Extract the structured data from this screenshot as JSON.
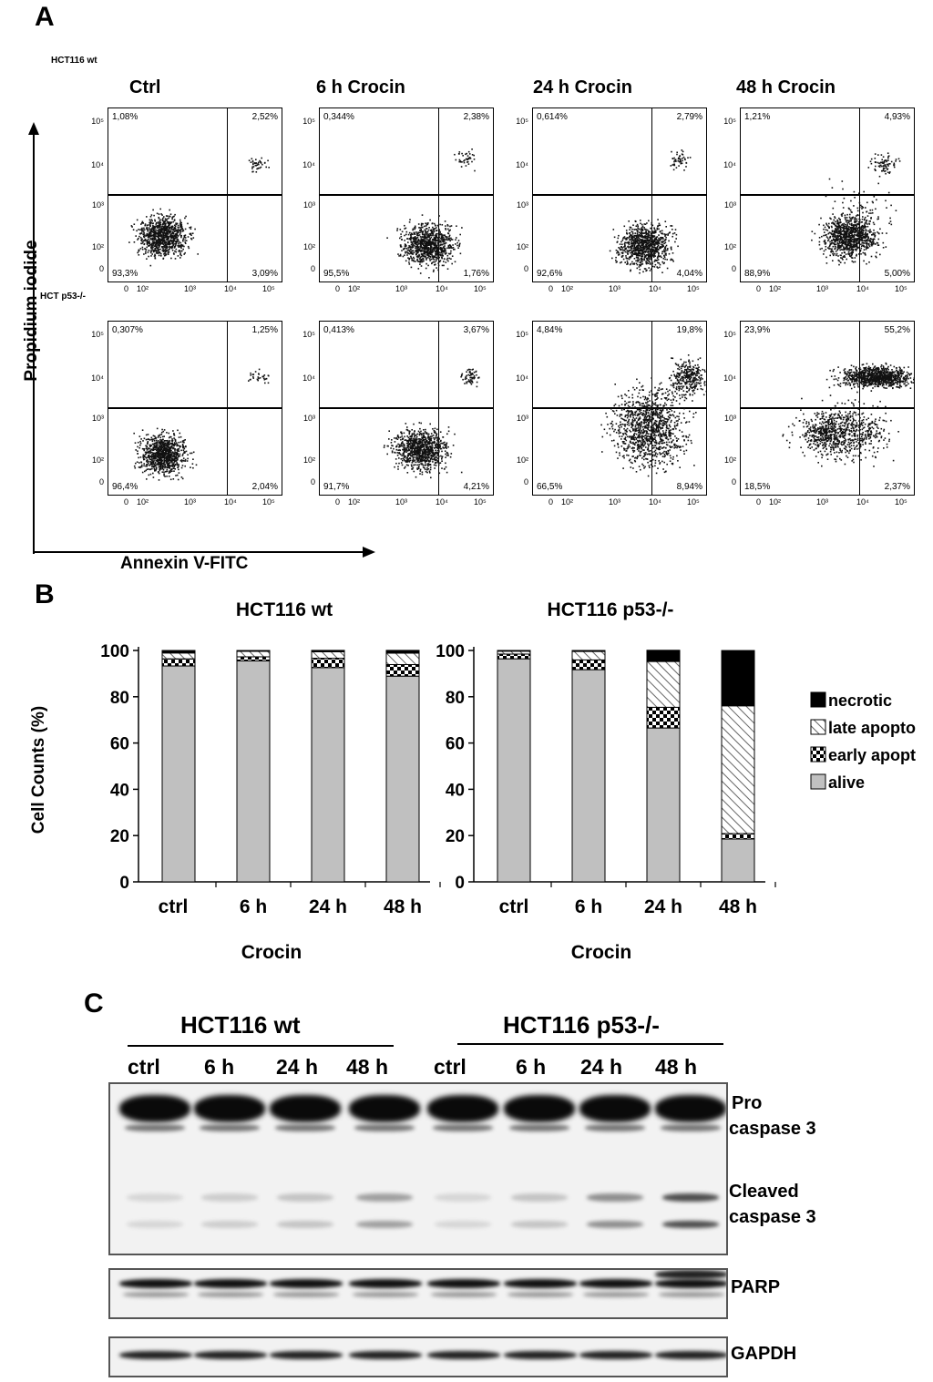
{
  "panels": {
    "a": "A",
    "b": "B",
    "c": "C"
  },
  "flow": {
    "row_labels": [
      "HCT116 wt",
      "HCT p53-/-"
    ],
    "column_titles": [
      "Ctrl",
      "6 h Crocin",
      "24 h Crocin",
      "48 h Crocin"
    ],
    "y_axis_label": "Propidium iodide",
    "x_axis_label": "Annexin V-FITC",
    "y_ticks": [
      "10⁵",
      "10⁴",
      "10³",
      "10²",
      "0"
    ],
    "x_ticks": [
      "0",
      "10²",
      "10³",
      "10⁴",
      "10⁵"
    ],
    "plots": [
      [
        {
          "ul": "1,08%",
          "ur": "2,52%",
          "ll": "93,3%",
          "lr": "3,09%"
        },
        {
          "ul": "0,344%",
          "ur": "2,38%",
          "ll": "95,5%",
          "lr": "1,76%"
        },
        {
          "ul": "0,614%",
          "ur": "2,79%",
          "ll": "92,6%",
          "lr": "4,04%"
        },
        {
          "ul": "1,21%",
          "ur": "4,93%",
          "ll": "88,9%",
          "lr": "5,00%"
        }
      ],
      [
        {
          "ul": "0,307%",
          "ur": "1,25%",
          "ll": "96,4%",
          "lr": "2,04%"
        },
        {
          "ul": "0,413%",
          "ur": "3,67%",
          "ll": "91,7%",
          "lr": "4,21%"
        },
        {
          "ul": "4,84%",
          "ur": "19,8%",
          "ll": "66,5%",
          "lr": "8,94%"
        },
        {
          "ul": "23,9%",
          "ur": "55,2%",
          "ll": "18,5%",
          "lr": "2,37%"
        }
      ]
    ]
  },
  "chart_data": {
    "type": "bar",
    "stacked": true,
    "ylabel": "Cell Counts (%)",
    "xlabel": "Crocin",
    "ylim": [
      0,
      100
    ],
    "y_ticks": [
      0,
      20,
      40,
      60,
      80,
      100
    ],
    "categories": [
      "ctrl",
      "6 h",
      "24 h",
      "48 h"
    ],
    "groups": [
      {
        "title": "HCT116 wt",
        "series": [
          {
            "name": "alive",
            "values": [
              93.3,
              95.5,
              92.6,
              88.9
            ]
          },
          {
            "name": "early apoptotic",
            "values": [
              3.09,
              1.76,
              4.04,
              5.0
            ]
          },
          {
            "name": "late apoptotic",
            "values": [
              2.52,
              2.38,
              2.79,
              4.93
            ]
          },
          {
            "name": "necrotic",
            "values": [
              1.08,
              0.34,
              0.61,
              1.21
            ]
          }
        ]
      },
      {
        "title": "HCT116 p53-/-",
        "series": [
          {
            "name": "alive",
            "values": [
              96.4,
              91.7,
              66.5,
              18.5
            ]
          },
          {
            "name": "early apoptotic",
            "values": [
              2.04,
              4.21,
              8.94,
              2.37
            ]
          },
          {
            "name": "late apoptotic",
            "values": [
              1.25,
              3.67,
              19.8,
              55.2
            ]
          },
          {
            "name": "necrotic",
            "values": [
              0.31,
              0.41,
              4.84,
              23.9
            ]
          }
        ]
      }
    ],
    "legend": [
      {
        "label": "necrotic"
      },
      {
        "label": "late apopto"
      },
      {
        "label": "early apopt"
      },
      {
        "label": "alive"
      }
    ]
  },
  "blot": {
    "groups": [
      "HCT116 wt",
      "HCT116 p53-/-"
    ],
    "lanes": [
      "ctrl",
      "6 h",
      "24 h",
      "48 h",
      "ctrl",
      "6 h",
      "24 h",
      "48 h"
    ],
    "labels": {
      "pro1": "Pro",
      "pro2": "caspase 3",
      "cleaved1": "Cleaved",
      "cleaved2": "caspase 3",
      "parp": "PARP",
      "gapdh": "GAPDH"
    }
  }
}
